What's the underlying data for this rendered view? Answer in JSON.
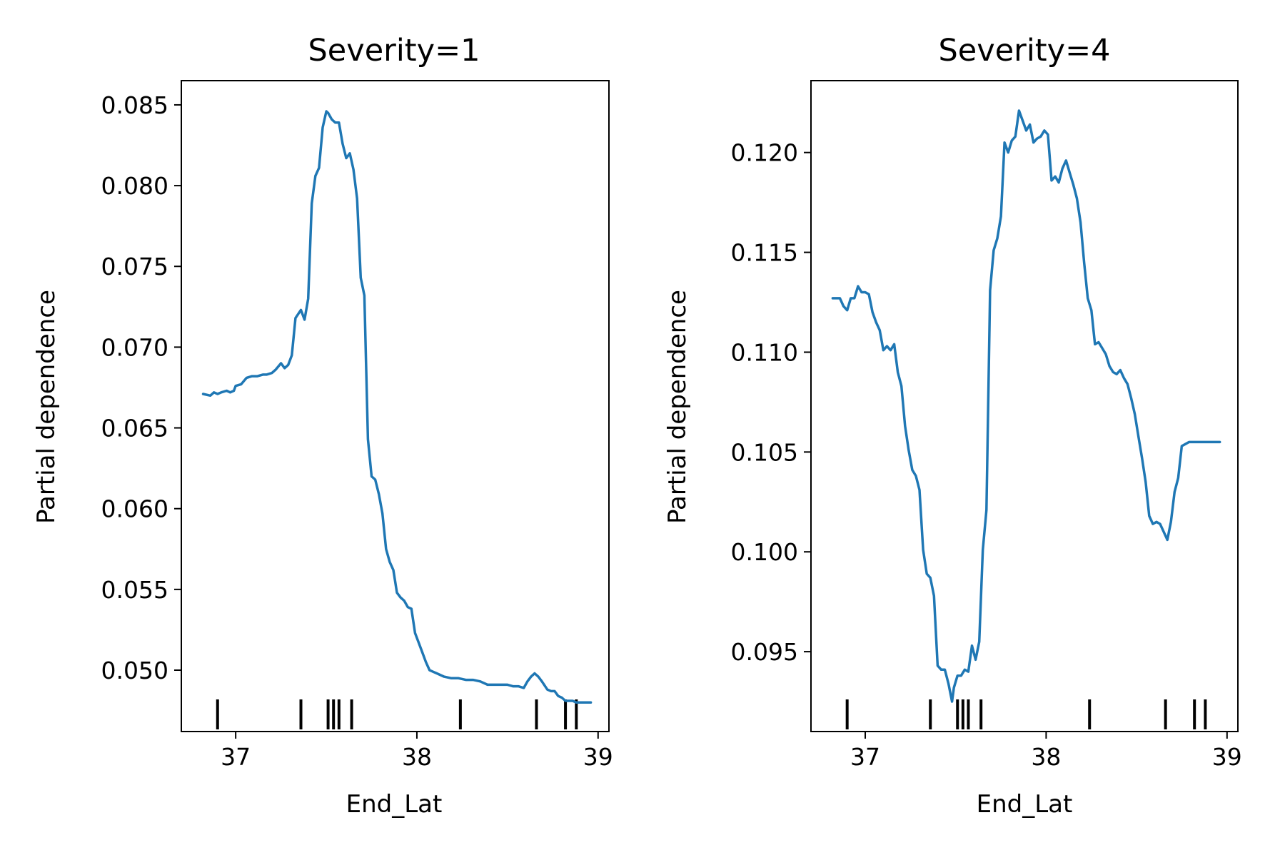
{
  "chart_data": [
    {
      "type": "line",
      "title": "Severity=1",
      "xlabel": "End_Lat",
      "ylabel": "Partial dependence",
      "xlim": [
        36.7,
        39.06
      ],
      "ylim": [
        0.0462,
        0.0865
      ],
      "x_ticks": [
        37,
        38,
        39
      ],
      "x_tick_labels": [
        "37",
        "38",
        "39"
      ],
      "y_ticks": [
        0.05,
        0.055,
        0.06,
        0.065,
        0.07,
        0.075,
        0.08,
        0.085
      ],
      "y_tick_labels": [
        "0.050",
        "0.055",
        "0.060",
        "0.065",
        "0.070",
        "0.075",
        "0.080",
        "0.085"
      ],
      "grid": false,
      "line_color": "#1f77b4",
      "deciles": [
        36.9,
        37.36,
        37.51,
        37.54,
        37.57,
        37.64,
        38.24,
        38.66,
        38.82,
        38.88
      ],
      "series": [
        {
          "x": [
            36.82,
            36.86,
            36.88,
            36.9,
            36.92,
            36.95,
            36.97,
            36.99,
            37.0,
            37.03,
            37.06,
            37.09,
            37.12,
            37.15,
            37.17,
            37.2,
            37.22,
            37.25,
            37.27,
            37.29,
            37.31,
            37.33,
            37.36,
            37.38,
            37.4,
            37.42,
            37.44,
            37.46,
            37.48,
            37.5,
            37.51,
            37.53,
            37.55,
            37.57,
            37.59,
            37.61,
            37.63,
            37.65,
            37.67,
            37.69,
            37.71,
            37.73,
            37.75,
            37.77,
            37.79,
            37.81,
            37.83,
            37.85,
            37.87,
            37.89,
            37.91,
            37.93,
            37.95,
            37.97,
            37.99,
            38.01,
            38.03,
            38.05,
            38.07,
            38.09,
            38.11,
            38.15,
            38.19,
            38.23,
            38.27,
            38.31,
            38.35,
            38.39,
            38.43,
            38.45,
            38.47,
            38.5,
            38.53,
            38.56,
            38.59,
            38.61,
            38.63,
            38.65,
            38.67,
            38.69,
            38.72,
            38.74,
            38.76,
            38.78,
            38.8,
            38.82,
            38.84,
            38.86,
            38.88,
            38.9,
            38.92,
            38.94,
            38.96
          ],
          "y": [
            0.0671,
            0.067,
            0.0672,
            0.0671,
            0.0672,
            0.0673,
            0.0672,
            0.0673,
            0.0676,
            0.0677,
            0.0681,
            0.0682,
            0.0682,
            0.0683,
            0.0683,
            0.0684,
            0.0686,
            0.069,
            0.0687,
            0.0689,
            0.0695,
            0.0718,
            0.0723,
            0.0717,
            0.073,
            0.0789,
            0.0806,
            0.0811,
            0.0836,
            0.0846,
            0.0845,
            0.0841,
            0.0839,
            0.0839,
            0.0826,
            0.0817,
            0.082,
            0.081,
            0.0792,
            0.0743,
            0.0732,
            0.0643,
            0.062,
            0.0618,
            0.0609,
            0.0597,
            0.0575,
            0.0567,
            0.0562,
            0.0548,
            0.0545,
            0.0543,
            0.0539,
            0.0538,
            0.0523,
            0.0517,
            0.0511,
            0.0505,
            0.05,
            0.0499,
            0.0498,
            0.0496,
            0.0495,
            0.0495,
            0.0494,
            0.0494,
            0.0493,
            0.0491,
            0.0491,
            0.0491,
            0.0491,
            0.0491,
            0.049,
            0.049,
            0.0489,
            0.0493,
            0.0496,
            0.0498,
            0.0496,
            0.0493,
            0.0488,
            0.0487,
            0.0487,
            0.0484,
            0.0483,
            0.0481,
            0.0481,
            0.0481,
            0.048,
            0.048,
            0.048,
            0.048,
            0.048
          ]
        }
      ]
    },
    {
      "type": "line",
      "title": "Severity=4",
      "xlabel": "End_Lat",
      "ylabel": "Partial dependence",
      "xlim": [
        36.7,
        39.06
      ],
      "ylim": [
        0.091,
        0.1236
      ],
      "x_ticks": [
        37,
        38,
        39
      ],
      "x_tick_labels": [
        "37",
        "38",
        "39"
      ],
      "y_ticks": [
        0.095,
        0.1,
        0.105,
        0.11,
        0.115,
        0.12
      ],
      "y_tick_labels": [
        "0.095",
        "0.100",
        "0.105",
        "0.110",
        "0.115",
        "0.120"
      ],
      "grid": false,
      "line_color": "#1f77b4",
      "deciles": [
        36.9,
        37.36,
        37.51,
        37.54,
        37.57,
        37.64,
        38.24,
        38.66,
        38.82,
        38.88
      ],
      "series": [
        {
          "x": [
            36.82,
            36.86,
            36.88,
            36.9,
            36.92,
            36.94,
            36.96,
            36.98,
            37.0,
            37.02,
            37.04,
            37.06,
            37.08,
            37.1,
            37.12,
            37.14,
            37.16,
            37.18,
            37.2,
            37.22,
            37.24,
            37.26,
            37.28,
            37.3,
            37.32,
            37.34,
            37.36,
            37.38,
            37.4,
            37.42,
            37.44,
            37.46,
            37.48,
            37.49,
            37.5,
            37.51,
            37.53,
            37.55,
            37.57,
            37.59,
            37.61,
            37.63,
            37.65,
            37.67,
            37.69,
            37.71,
            37.73,
            37.75,
            37.77,
            37.79,
            37.81,
            37.83,
            37.85,
            37.87,
            37.89,
            37.91,
            37.93,
            37.95,
            37.97,
            37.99,
            38.01,
            38.03,
            38.05,
            38.07,
            38.09,
            38.11,
            38.13,
            38.15,
            38.17,
            38.19,
            38.21,
            38.23,
            38.25,
            38.27,
            38.29,
            38.31,
            38.33,
            38.35,
            38.37,
            38.39,
            38.41,
            38.43,
            38.45,
            38.47,
            38.49,
            38.51,
            38.53,
            38.55,
            38.57,
            38.59,
            38.61,
            38.63,
            38.65,
            38.67,
            38.69,
            38.71,
            38.73,
            38.75,
            38.77,
            38.79,
            38.81,
            38.83,
            38.85,
            38.87,
            38.89,
            38.91,
            38.93,
            38.96
          ],
          "y": [
            0.1127,
            0.1127,
            0.1123,
            0.1121,
            0.1127,
            0.1127,
            0.1133,
            0.113,
            0.113,
            0.1129,
            0.112,
            0.1115,
            0.1111,
            0.1101,
            0.1103,
            0.1101,
            0.1104,
            0.109,
            0.1083,
            0.1063,
            0.1051,
            0.1041,
            0.1038,
            0.1031,
            0.1001,
            0.0989,
            0.0987,
            0.0978,
            0.0943,
            0.0941,
            0.0941,
            0.0934,
            0.0925,
            0.0932,
            0.0935,
            0.0938,
            0.0938,
            0.0941,
            0.094,
            0.0953,
            0.0946,
            0.0955,
            0.1001,
            0.1021,
            0.1131,
            0.1151,
            0.1157,
            0.1168,
            0.1205,
            0.12,
            0.1206,
            0.1208,
            0.1221,
            0.1216,
            0.1211,
            0.1214,
            0.1205,
            0.1207,
            0.1208,
            0.1211,
            0.1209,
            0.1186,
            0.1188,
            0.1185,
            0.1192,
            0.1196,
            0.119,
            0.1184,
            0.1177,
            0.1165,
            0.1145,
            0.1127,
            0.1121,
            0.1104,
            0.1105,
            0.1102,
            0.1099,
            0.1093,
            0.109,
            0.1089,
            0.1091,
            0.1087,
            0.1084,
            0.1077,
            0.1069,
            0.1058,
            0.1047,
            0.1035,
            0.1018,
            0.1014,
            0.1015,
            0.1014,
            0.101,
            0.1006,
            0.1015,
            0.103,
            0.1037,
            0.1053,
            0.1054,
            0.1055,
            0.1055,
            0.1055,
            0.1055,
            0.1055,
            0.1055,
            0.1055,
            0.1055,
            0.1055
          ]
        }
      ]
    }
  ]
}
